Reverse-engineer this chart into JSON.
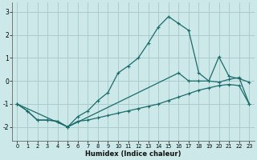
{
  "xlabel": "Humidex (Indice chaleur)",
  "bg_color": "#cce8e8",
  "grid_color": "#aacccc",
  "line_color": "#1a6b6b",
  "xlim": [
    -0.5,
    23.5
  ],
  "ylim": [
    -2.6,
    3.4
  ],
  "yticks": [
    -2,
    -1,
    0,
    1,
    2,
    3
  ],
  "xticks": [
    0,
    1,
    2,
    3,
    4,
    5,
    6,
    7,
    8,
    9,
    10,
    11,
    12,
    13,
    14,
    15,
    16,
    17,
    18,
    19,
    20,
    21,
    22,
    23
  ],
  "lines": [
    {
      "x": [
        0,
        1,
        2,
        3,
        4,
        5,
        6,
        7,
        8,
        9,
        10,
        11,
        12,
        13,
        14,
        15,
        16,
        17,
        18,
        19,
        20,
        21,
        22,
        23
      ],
      "y": [
        -1.0,
        -1.3,
        -1.7,
        -1.7,
        -1.75,
        -2.0,
        -1.55,
        -1.3,
        -0.85,
        -0.5,
        0.35,
        0.65,
        1.0,
        1.65,
        2.35,
        2.8,
        2.5,
        2.2,
        0.35,
        0.0,
        1.05,
        0.2,
        0.1,
        -0.05
      ]
    },
    {
      "x": [
        0,
        5,
        16,
        17,
        18,
        19,
        20,
        21,
        22,
        23
      ],
      "y": [
        -1.0,
        -2.0,
        0.35,
        0.0,
        0.0,
        0.0,
        -0.05,
        0.07,
        0.15,
        -1.0
      ]
    },
    {
      "x": [
        0,
        1,
        2,
        3,
        4,
        5,
        6,
        7,
        8,
        9,
        10,
        11,
        12,
        13,
        14,
        15,
        16,
        17,
        18,
        19,
        20,
        21,
        22,
        23
      ],
      "y": [
        -1.0,
        -1.3,
        -1.7,
        -1.7,
        -1.75,
        -2.0,
        -1.75,
        -1.7,
        -1.6,
        -1.5,
        -1.4,
        -1.3,
        -1.2,
        -1.1,
        -1.0,
        -0.85,
        -0.7,
        -0.55,
        -0.4,
        -0.3,
        -0.2,
        -0.15,
        -0.2,
        -1.0
      ]
    }
  ]
}
